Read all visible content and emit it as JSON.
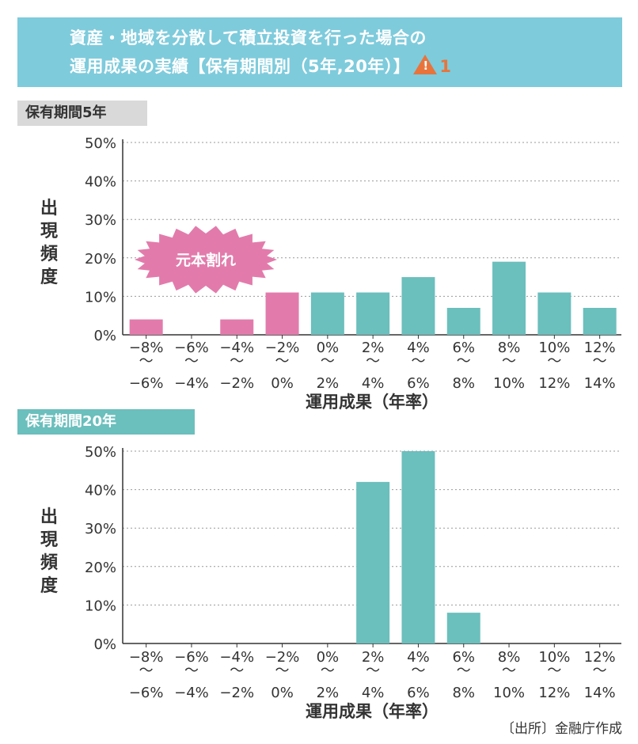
{
  "title": {
    "line1": "資産・地域を分散して積立投資を行った場合の",
    "line2": "運用成果の実績【保有期間別（5年,20年）】",
    "warning_number": "1"
  },
  "source": "〔出所〕金融庁作成",
  "colors": {
    "header_bg": "#7ecbdc",
    "loss_bar": "#e27bab",
    "gain_bar": "#6bbfbd",
    "callout": "#e27bab",
    "warning": "#e8743c"
  },
  "chart_data": [
    {
      "type": "bar",
      "title": "保有期間5年",
      "xlabel": "運用成果（年率）",
      "ylabel": "出現頻度",
      "ylim": [
        0,
        50
      ],
      "yticks": [
        "0%",
        "10%",
        "20%",
        "30%",
        "40%",
        "50%"
      ],
      "categories": [
        {
          "top": "−8%",
          "bottom": "−6%"
        },
        {
          "top": "−6%",
          "bottom": "−4%"
        },
        {
          "top": "−4%",
          "bottom": "−2%"
        },
        {
          "top": "−2%",
          "bottom": "0%"
        },
        {
          "top": "0%",
          "bottom": "2%"
        },
        {
          "top": "2%",
          "bottom": "4%"
        },
        {
          "top": "4%",
          "bottom": "6%"
        },
        {
          "top": "6%",
          "bottom": "8%"
        },
        {
          "top": "8%",
          "bottom": "10%"
        },
        {
          "top": "10%",
          "bottom": "12%"
        },
        {
          "top": "12%",
          "bottom": "14%"
        }
      ],
      "range_mark": "〜",
      "values": [
        4,
        0,
        4,
        11,
        11,
        11,
        15,
        7,
        19,
        11,
        7
      ],
      "loss_categories": 4,
      "annotation": "元本割れ",
      "grid": true
    },
    {
      "type": "bar",
      "title": "保有期間20年",
      "xlabel": "運用成果（年率）",
      "ylabel": "出現頻度",
      "ylim": [
        0,
        50
      ],
      "yticks": [
        "0%",
        "10%",
        "20%",
        "30%",
        "40%",
        "50%"
      ],
      "categories": [
        {
          "top": "−8%",
          "bottom": "−6%"
        },
        {
          "top": "−6%",
          "bottom": "−4%"
        },
        {
          "top": "−4%",
          "bottom": "−2%"
        },
        {
          "top": "−2%",
          "bottom": "0%"
        },
        {
          "top": "0%",
          "bottom": "2%"
        },
        {
          "top": "2%",
          "bottom": "4%"
        },
        {
          "top": "4%",
          "bottom": "6%"
        },
        {
          "top": "6%",
          "bottom": "8%"
        },
        {
          "top": "8%",
          "bottom": "10%"
        },
        {
          "top": "10%",
          "bottom": "12%"
        },
        {
          "top": "12%",
          "bottom": "14%"
        }
      ],
      "range_mark": "〜",
      "values": [
        0,
        0,
        0,
        0,
        0,
        42,
        50,
        8,
        0,
        0,
        0
      ],
      "loss_categories": 4,
      "grid": true
    }
  ]
}
